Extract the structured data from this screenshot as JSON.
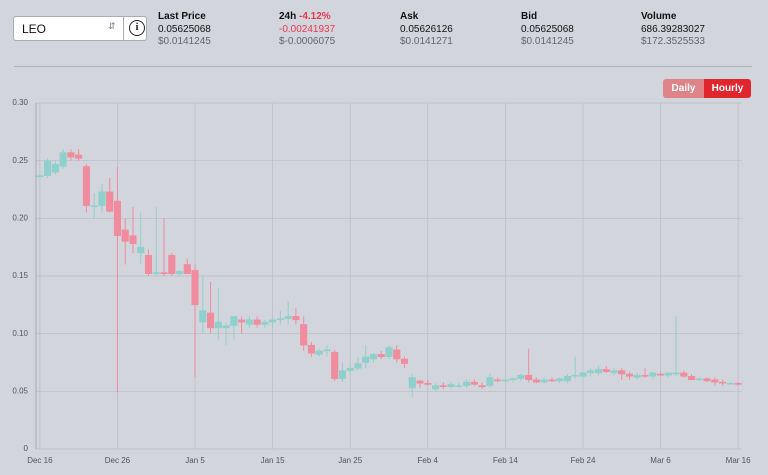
{
  "header": {
    "symbol": "LEO",
    "stats": [
      {
        "label": "Last Price",
        "value": "0.05625068",
        "sub": "$0.0141245"
      },
      {
        "label": "24h",
        "change": "-4.12%",
        "value": "-0.00241937",
        "sub": "$-0.0006075"
      },
      {
        "label": "Ask",
        "value": "0.05626126",
        "sub": "$0.0141271"
      },
      {
        "label": "Bid",
        "value": "0.05625068",
        "sub": "$0.0141245"
      },
      {
        "label": "Volume",
        "value": "686.39283027",
        "sub": "$172.3525533"
      }
    ]
  },
  "buttons": [
    "Daily",
    "Hourly"
  ],
  "chart_data": {
    "type": "candlestick",
    "up_color": "#8fd0cc",
    "down_color": "#f08c9e",
    "grid": true,
    "x": [
      0,
      1,
      2,
      3,
      4,
      5,
      6,
      7,
      8,
      9,
      10,
      11,
      12,
      13,
      14,
      15,
      16,
      17,
      18,
      19,
      20,
      21,
      22,
      23,
      24,
      25,
      26,
      27,
      28,
      29,
      30,
      31,
      32,
      33,
      34,
      35,
      36,
      37,
      38,
      39,
      40,
      41,
      42,
      43,
      44,
      45,
      46,
      47,
      48,
      49,
      50,
      51,
      52,
      53,
      54,
      55,
      56,
      57,
      58,
      59,
      60,
      61,
      62,
      63,
      64,
      65,
      66,
      67,
      68,
      69,
      70,
      71,
      72,
      73,
      74,
      75,
      76,
      77,
      78,
      79,
      80,
      81,
      82,
      83,
      84,
      85,
      86,
      87,
      88,
      89,
      90
    ],
    "open": [
      0.236,
      0.237,
      0.24,
      0.245,
      0.257,
      0.255,
      0.245,
      0.211,
      0.211,
      0.223,
      0.215,
      0.19,
      0.185,
      0.17,
      0.168,
      0.152,
      0.153,
      0.168,
      0.152,
      0.16,
      0.155,
      0.11,
      0.118,
      0.105,
      0.105,
      0.107,
      0.112,
      0.108,
      0.112,
      0.108,
      0.11,
      0.112,
      0.113,
      0.115,
      0.108,
      0.09,
      0.082,
      0.085,
      0.084,
      0.061,
      0.068,
      0.07,
      0.075,
      0.078,
      0.082,
      0.08,
      0.086,
      0.078,
      0.053,
      0.059,
      0.057,
      0.052,
      0.055,
      0.054,
      0.055,
      0.055,
      0.058,
      0.055,
      0.055,
      0.06,
      0.059,
      0.06,
      0.061,
      0.064,
      0.06,
      0.058,
      0.06,
      0.059,
      0.059,
      0.063,
      0.063,
      0.066,
      0.066,
      0.069,
      0.066,
      0.068,
      0.065,
      0.062,
      0.064,
      0.063,
      0.065,
      0.064,
      0.065,
      0.066,
      0.063,
      0.06,
      0.061,
      0.06,
      0.058,
      0.057,
      0.057
    ],
    "high": [
      0.238,
      0.252,
      0.25,
      0.26,
      0.26,
      0.26,
      0.247,
      0.222,
      0.23,
      0.235,
      0.245,
      0.2,
      0.21,
      0.205,
      0.173,
      0.21,
      0.2,
      0.17,
      0.155,
      0.165,
      0.16,
      0.15,
      0.145,
      0.14,
      0.11,
      0.115,
      0.115,
      0.115,
      0.115,
      0.112,
      0.115,
      0.12,
      0.128,
      0.122,
      0.115,
      0.093,
      0.087,
      0.09,
      0.086,
      0.075,
      0.075,
      0.08,
      0.09,
      0.083,
      0.085,
      0.09,
      0.09,
      0.08,
      0.065,
      0.06,
      0.06,
      0.057,
      0.058,
      0.058,
      0.058,
      0.06,
      0.06,
      0.058,
      0.065,
      0.062,
      0.06,
      0.062,
      0.065,
      0.087,
      0.062,
      0.062,
      0.062,
      0.062,
      0.065,
      0.08,
      0.067,
      0.07,
      0.072,
      0.072,
      0.07,
      0.07,
      0.067,
      0.066,
      0.07,
      0.067,
      0.067,
      0.066,
      0.115,
      0.068,
      0.065,
      0.062,
      0.062,
      0.062,
      0.06,
      0.058,
      0.058
    ],
    "low": [
      0.235,
      0.235,
      0.238,
      0.243,
      0.25,
      0.25,
      0.205,
      0.2,
      0.205,
      0.205,
      0.049,
      0.16,
      0.17,
      0.16,
      0.15,
      0.15,
      0.15,
      0.15,
      0.15,
      0.152,
      0.062,
      0.1,
      0.1,
      0.095,
      0.09,
      0.095,
      0.1,
      0.105,
      0.105,
      0.105,
      0.105,
      0.108,
      0.108,
      0.108,
      0.085,
      0.08,
      0.08,
      0.08,
      0.059,
      0.058,
      0.065,
      0.068,
      0.07,
      0.075,
      0.078,
      0.078,
      0.075,
      0.07,
      0.045,
      0.053,
      0.055,
      0.05,
      0.052,
      0.052,
      0.053,
      0.053,
      0.055,
      0.052,
      0.053,
      0.058,
      0.058,
      0.058,
      0.059,
      0.058,
      0.057,
      0.057,
      0.058,
      0.057,
      0.057,
      0.061,
      0.061,
      0.063,
      0.064,
      0.066,
      0.064,
      0.06,
      0.06,
      0.06,
      0.062,
      0.061,
      0.063,
      0.062,
      0.063,
      0.062,
      0.06,
      0.059,
      0.058,
      0.055,
      0.055,
      0.056,
      0.055
    ],
    "close": [
      0.237,
      0.25,
      0.247,
      0.257,
      0.253,
      0.252,
      0.211,
      0.211,
      0.223,
      0.206,
      0.185,
      0.18,
      0.178,
      0.175,
      0.152,
      0.153,
      0.152,
      0.152,
      0.154,
      0.152,
      0.125,
      0.12,
      0.105,
      0.11,
      0.107,
      0.115,
      0.11,
      0.112,
      0.108,
      0.11,
      0.112,
      0.113,
      0.115,
      0.112,
      0.09,
      0.083,
      0.085,
      0.086,
      0.061,
      0.068,
      0.07,
      0.074,
      0.08,
      0.082,
      0.08,
      0.088,
      0.078,
      0.074,
      0.062,
      0.057,
      0.056,
      0.055,
      0.054,
      0.056,
      0.055,
      0.058,
      0.056,
      0.054,
      0.062,
      0.059,
      0.06,
      0.061,
      0.064,
      0.06,
      0.058,
      0.06,
      0.059,
      0.061,
      0.063,
      0.064,
      0.066,
      0.068,
      0.069,
      0.067,
      0.068,
      0.065,
      0.063,
      0.064,
      0.063,
      0.066,
      0.064,
      0.066,
      0.066,
      0.063,
      0.06,
      0.061,
      0.059,
      0.058,
      0.057,
      0.057,
      0.056
    ],
    "xlim": [
      -0.5,
      90.5
    ],
    "xticks": [
      {
        "value": 0,
        "label": "Dec 16"
      },
      {
        "value": 10,
        "label": "Dec 26"
      },
      {
        "value": 20,
        "label": "Jan 5"
      },
      {
        "value": 30,
        "label": "Jan 15"
      },
      {
        "value": 40,
        "label": "Jan 25"
      },
      {
        "value": 50,
        "label": "Feb 4"
      },
      {
        "value": 60,
        "label": "Feb 14"
      },
      {
        "value": 70,
        "label": "Feb 24"
      },
      {
        "value": 80,
        "label": "Mar 6"
      },
      {
        "value": 90,
        "label": "Mar 16"
      }
    ],
    "ylim": [
      0,
      0.3
    ],
    "yticks": [
      0,
      0.05,
      {
        "value": 0.1,
        "label": "0.10"
      },
      0.15,
      {
        "value": 0.2,
        "label": "0.20"
      },
      0.25,
      {
        "value": 0.3,
        "label": "0.30"
      }
    ]
  }
}
